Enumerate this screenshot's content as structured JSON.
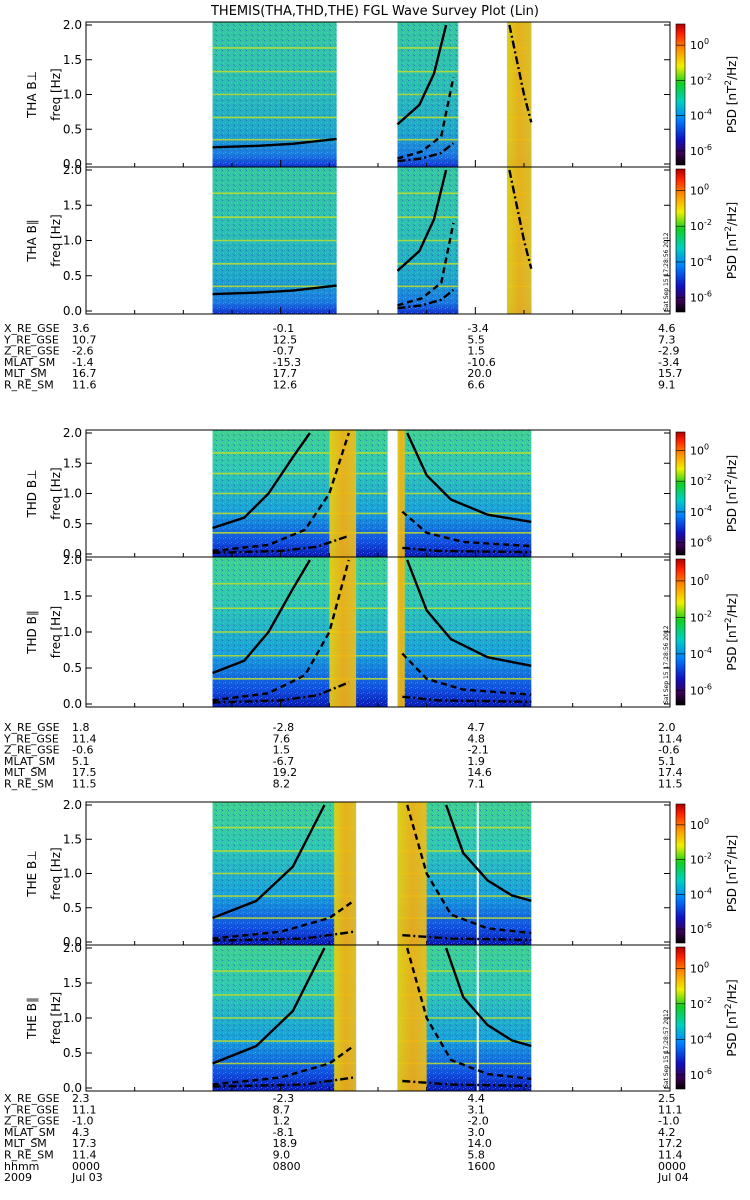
{
  "chart_data": {
    "type": "heatmap",
    "title": "THEMIS(THA,THD,THE) FGL Wave Survey Plot (Lin)",
    "ylabel": "freq [Hz]",
    "ylim": [
      0,
      2.0
    ],
    "yticks": [
      "0.0",
      "0.5",
      "1.0",
      "1.5",
      "2.0"
    ],
    "colorbar_label": "PSD [nT^2/Hz]",
    "colorbar_ticks": [
      "10^0",
      "10^-2",
      "10^-4",
      "10^-6"
    ],
    "colorbar_range_log": [
      -6.8,
      1.2
    ],
    "x_range_hours": [
      0,
      24
    ],
    "timestamp": "Sat Sep 15 17:28:56 2012",
    "timestamp_2": "Sat Sep 15 17:28:57 2012",
    "probes": [
      {
        "id": "THA",
        "panels": [
          "THA B⊥",
          "THA B∥"
        ],
        "coverage_hours": [
          [
            5.2,
            10.3
          ],
          [
            12.8,
            15.3
          ],
          [
            17.3,
            18.3
          ]
        ],
        "gap_hours": [
          [
            10.3,
            12.8
          ]
        ],
        "gyro_line_segments": [
          {
            "style": "solid",
            "x": [
              5.2,
              7,
              8.5,
              10.3
            ],
            "y": [
              0.24,
              0.26,
              0.29,
              0.36
            ]
          },
          {
            "style": "solid",
            "x": [
              12.8,
              13.7,
              14.3,
              14.8
            ],
            "y": [
              0.57,
              0.85,
              1.3,
              2.0
            ]
          },
          {
            "style": "dashed",
            "x": [
              12.8,
              13.8,
              14.6,
              15.1
            ],
            "y": [
              0.08,
              0.18,
              0.4,
              1.25
            ]
          },
          {
            "style": "dashdot",
            "x": [
              12.8,
              13.8,
              14.6,
              15.1
            ],
            "y": [
              0.04,
              0.08,
              0.16,
              0.3
            ]
          },
          {
            "style": "dashdot",
            "x": [
              17.4,
              17.7,
              18.0,
              18.3
            ],
            "y": [
              2.0,
              1.5,
              1.0,
              0.6
            ]
          }
        ],
        "ephemeris": {
          "labels": [
            "X_RE_GSE",
            "Y_RE_GSE",
            "Z_RE_GSE",
            "MLAT_SM",
            "MLT_SM",
            "R_RE_SM"
          ],
          "columns": [
            [
              "3.6",
              "10.7",
              "-2.6",
              "-1.4",
              "16.7",
              "11.6"
            ],
            [
              "-0.1",
              "12.5",
              "-0.7",
              "-15.3",
              "17.7",
              "12.6"
            ],
            [
              "-3.4",
              "5.5",
              "1.5",
              "-10.6",
              "20.0",
              "6.6"
            ],
            [
              "4.6",
              "7.3",
              "-2.9",
              "-3.4",
              "15.7",
              "9.1"
            ]
          ]
        }
      },
      {
        "id": "THD",
        "panels": [
          "THD B⊥",
          "THD B∥"
        ],
        "coverage_hours": [
          [
            5.2,
            12.4
          ],
          [
            12.8,
            18.3
          ]
        ],
        "gap_hours": [
          [
            12.4,
            12.8
          ]
        ],
        "gyro_line_segments": [
          {
            "style": "solid",
            "x": [
              5.2,
              6.5,
              7.5,
              8.5,
              9.2
            ],
            "y": [
              0.43,
              0.6,
              1.0,
              1.6,
              2.0
            ]
          },
          {
            "style": "dashed",
            "x": [
              5.2,
              7.5,
              9.0,
              10.0,
              10.8
            ],
            "y": [
              0.05,
              0.15,
              0.4,
              1.0,
              2.0
            ]
          },
          {
            "style": "dashdot",
            "x": [
              5.2,
              8.0,
              9.5,
              10.8
            ],
            "y": [
              0.02,
              0.05,
              0.12,
              0.3
            ]
          },
          {
            "style": "solid",
            "x": [
              13.2,
              14.0,
              15.0,
              16.5,
              18.3
            ],
            "y": [
              2.0,
              1.3,
              0.9,
              0.65,
              0.53
            ]
          },
          {
            "style": "dashed",
            "x": [
              13.0,
              14.0,
              15.5,
              18.3
            ],
            "y": [
              0.7,
              0.35,
              0.2,
              0.13
            ]
          },
          {
            "style": "dashdot",
            "x": [
              13.0,
              14.5,
              18.3
            ],
            "y": [
              0.1,
              0.05,
              0.03
            ]
          }
        ],
        "ephemeris": {
          "labels": [
            "X_RE_GSE",
            "Y_RE_GSE",
            "Z_RE_GSE",
            "MLAT_SM",
            "MLT_SM",
            "R_RE_SM"
          ],
          "columns": [
            [
              "1.8",
              "11.4",
              "-0.6",
              "5.1",
              "17.5",
              "11.5"
            ],
            [
              "-2.8",
              "7.6",
              "1.5",
              "-6.7",
              "19.2",
              "8.2"
            ],
            [
              "4.7",
              "4.8",
              "-2.1",
              "1.9",
              "14.6",
              "7.1"
            ],
            [
              "2.0",
              "11.4",
              "-0.6",
              "5.1",
              "17.4",
              "11.5"
            ]
          ]
        }
      },
      {
        "id": "THE",
        "panels": [
          "THE B⊥",
          "THE B∥"
        ],
        "coverage_hours": [
          [
            5.2,
            11.1
          ],
          [
            12.8,
            18.3
          ]
        ],
        "gap_hours": [
          [
            11.1,
            12.8
          ]
        ],
        "gyro_line_segments": [
          {
            "style": "solid",
            "x": [
              5.2,
              7.0,
              8.5,
              9.8
            ],
            "y": [
              0.35,
              0.6,
              1.1,
              2.0
            ]
          },
          {
            "style": "dashed",
            "x": [
              5.2,
              8.0,
              10.0,
              11.0
            ],
            "y": [
              0.05,
              0.15,
              0.35,
              0.6
            ]
          },
          {
            "style": "dashdot",
            "x": [
              5.2,
              9.0,
              11.0
            ],
            "y": [
              0.02,
              0.05,
              0.15
            ]
          },
          {
            "style": "solid",
            "x": [
              14.8,
              15.5,
              16.5,
              17.5,
              18.3
            ],
            "y": [
              2.0,
              1.3,
              0.9,
              0.68,
              0.6
            ]
          },
          {
            "style": "dashed",
            "x": [
              13.2,
              14.0,
              15.0,
              16.5,
              18.3
            ],
            "y": [
              2.0,
              1.0,
              0.4,
              0.2,
              0.13
            ]
          },
          {
            "style": "dashdot",
            "x": [
              13.0,
              15.0,
              18.3
            ],
            "y": [
              0.1,
              0.05,
              0.03
            ]
          }
        ],
        "white_line_hour": 16.1,
        "ephemeris": {
          "labels": [
            "X_RE_GSE",
            "Y_RE_GSE",
            "Z_RE_GSE",
            "MLAT_SM",
            "MLT_SM",
            "R_RE_SM",
            "hhmm",
            "2009"
          ],
          "columns": [
            [
              "2.3",
              "11.1",
              "-1.0",
              "4.3",
              "17.3",
              "11.4",
              "0000",
              "Jul 03"
            ],
            [
              "-2.3",
              "8.7",
              "1.2",
              "-8.1",
              "18.9",
              "9.0",
              "0800",
              ""
            ],
            [
              "4.4",
              "3.1",
              "-2.0",
              "3.0",
              "14.0",
              "5.8",
              "1600",
              ""
            ],
            [
              "2.5",
              "11.1",
              "-1.0",
              "4.2",
              "17.2",
              "11.4",
              "0000",
              "Jul 04"
            ]
          ]
        }
      }
    ]
  }
}
